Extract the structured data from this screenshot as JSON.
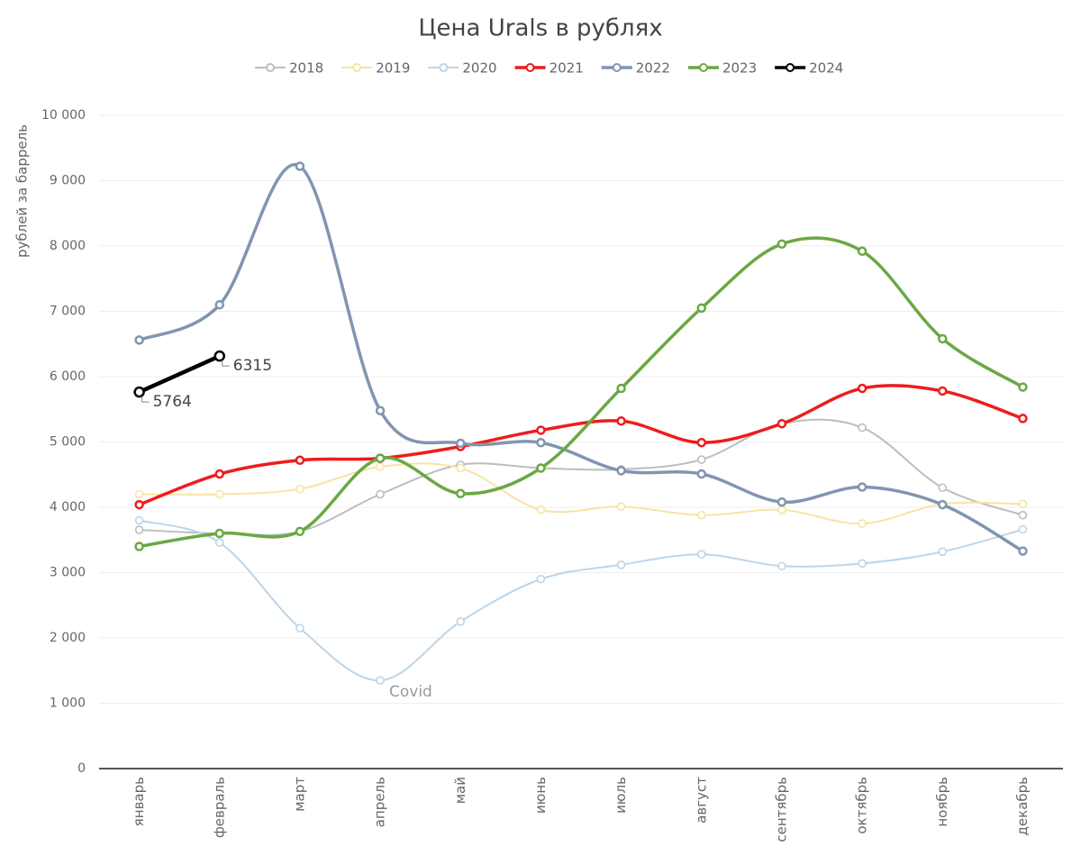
{
  "chart_data": {
    "type": "line",
    "title": "Цена Urals в рублях",
    "y_label": "рублей за баррель",
    "annotations": [
      "Covid"
    ],
    "categories": [
      "январь",
      "февраль",
      "март",
      "апрель",
      "май",
      "июнь",
      "июль",
      "август",
      "сентябрь",
      "октябрь",
      "ноябрь",
      "декабрь"
    ],
    "series": [
      {
        "name": "2018",
        "color": "#bdbdbd",
        "values": [
          3655,
          3600,
          3630,
          4200,
          4650,
          4600,
          4580,
          4730,
          5280,
          5220,
          4300,
          3880
        ]
      },
      {
        "name": "2019",
        "color": "#f8e3a3",
        "values": [
          4200,
          4200,
          4280,
          4620,
          4600,
          3960,
          4010,
          3880,
          3960,
          3750,
          4050,
          4050
        ]
      },
      {
        "name": "2020",
        "color": "#bcd5e9",
        "values": [
          3800,
          3460,
          2150,
          1350,
          2250,
          2900,
          3120,
          3280,
          3100,
          3140,
          3320,
          3660
        ]
      },
      {
        "name": "2021",
        "color": "#ee1c1c",
        "values": [
          4040,
          4510,
          4720,
          4750,
          4930,
          5180,
          5320,
          4990,
          5280,
          5820,
          5780,
          5360
        ]
      },
      {
        "name": "2022",
        "color": "#8195b1",
        "values": [
          6560,
          7100,
          9220,
          5480,
          4980,
          4990,
          4560,
          4510,
          4080,
          4310,
          4040,
          3330
        ]
      },
      {
        "name": "2023",
        "color": "#6aa843",
        "values": [
          3400,
          3600,
          3630,
          4750,
          4210,
          4600,
          5820,
          7050,
          8030,
          7920,
          6580,
          5840
        ]
      },
      {
        "name": "2024",
        "color": "#000000",
        "values": [
          5764,
          6315,
          null,
          null,
          null,
          null,
          null,
          null,
          null,
          null,
          null,
          null
        ],
        "value_labels": [
          "5764",
          "6315",
          null,
          null,
          null,
          null,
          null,
          null,
          null,
          null,
          null,
          null
        ]
      }
    ],
    "ylim": [
      0,
      10000
    ],
    "yticks": [
      0,
      {
        "value": 1000,
        "label": "1 000"
      },
      {
        "value": 2000,
        "label": "2 000"
      },
      {
        "value": 3000,
        "label": "3 000"
      },
      {
        "value": 4000,
        "label": "4 000"
      },
      {
        "value": 5000,
        "label": "5 000"
      },
      {
        "value": 6000,
        "label": "6 000"
      },
      {
        "value": 7000,
        "label": "7 000"
      },
      {
        "value": 8000,
        "label": "8 000"
      },
      {
        "value": 9000,
        "label": "9 000"
      },
      {
        "value": 10000,
        "label": "10 000"
      }
    ],
    "grid": true,
    "legend": "top",
    "smooth": true
  }
}
